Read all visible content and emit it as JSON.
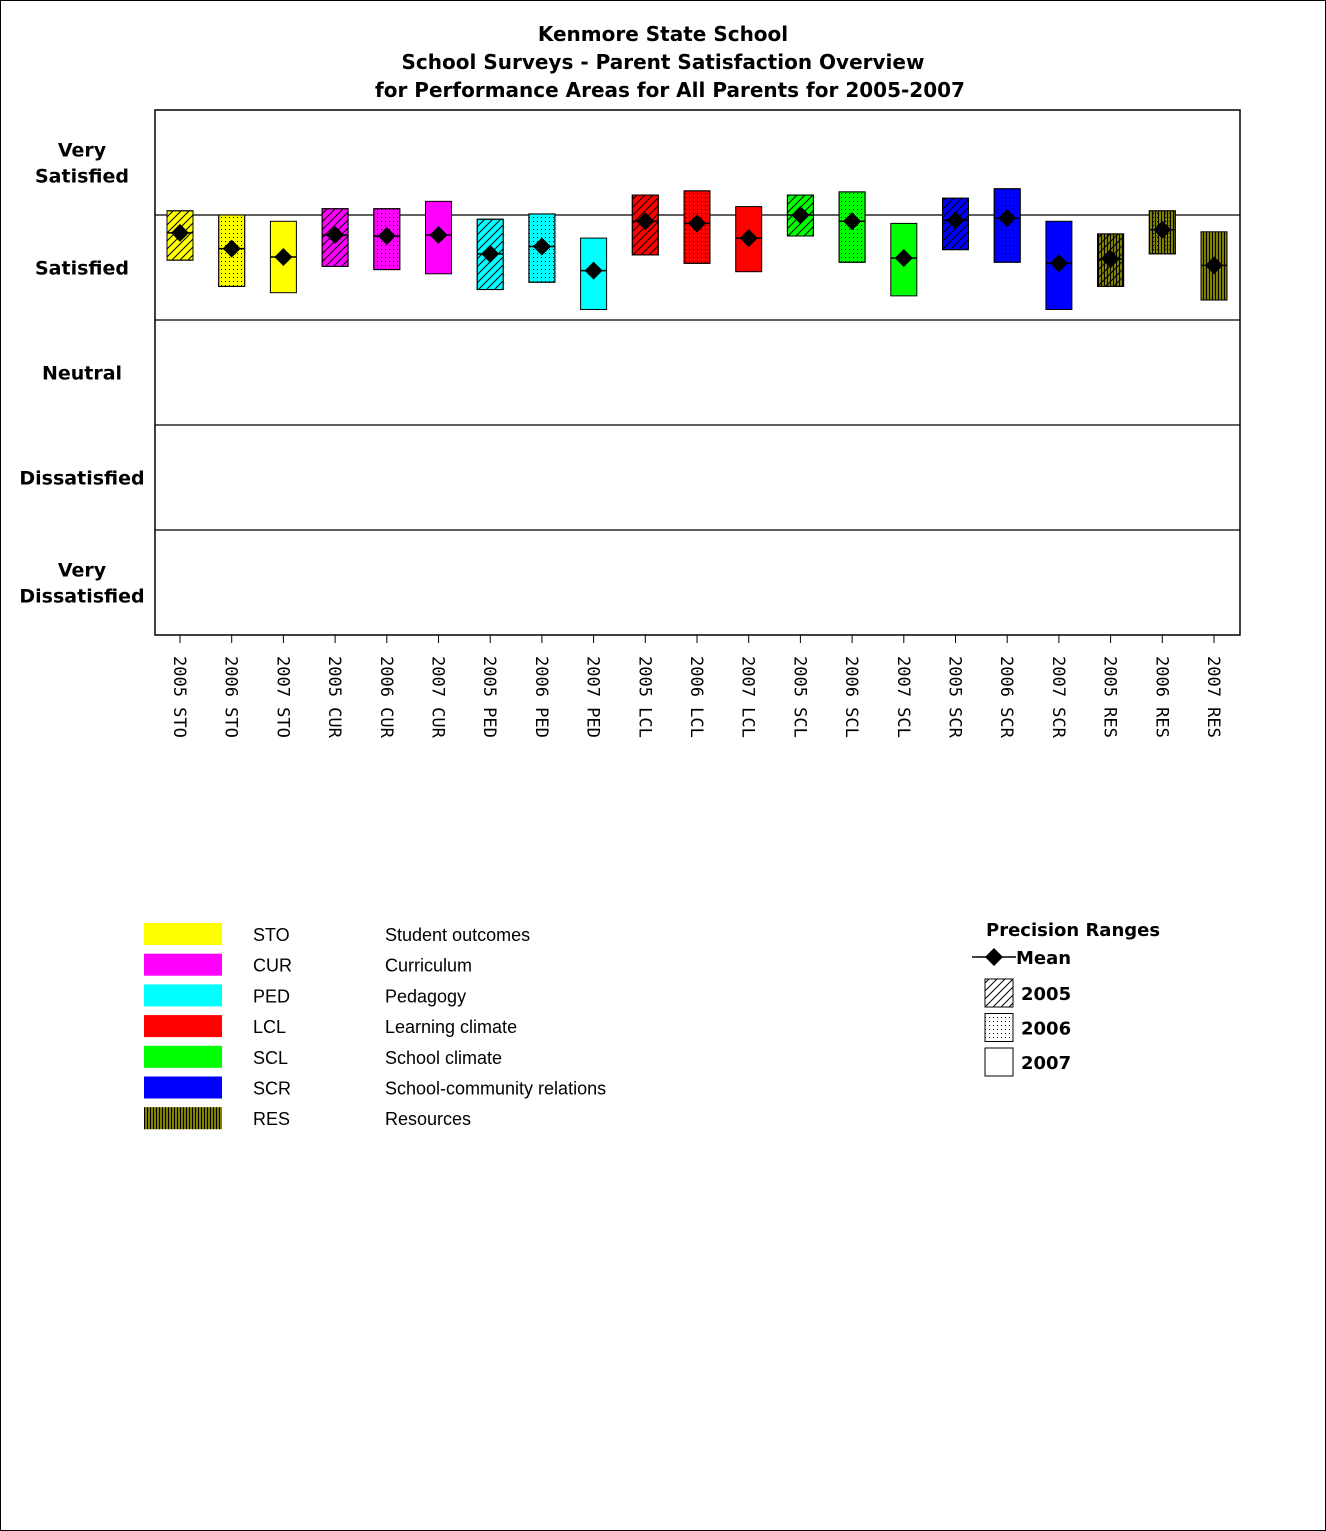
{
  "chart_data": {
    "type": "bar",
    "title": [
      "Kenmore State School",
      "School Surveys - Parent Satisfaction Overview",
      "for Performance Areas for All Parents for 2005-2007"
    ],
    "y_levels": [
      {
        "value": 5,
        "label_lines": [
          "Very",
          "Satisfied"
        ]
      },
      {
        "value": 4,
        "label_lines": [
          "Satisfied"
        ]
      },
      {
        "value": 3,
        "label_lines": [
          "Neutral"
        ]
      },
      {
        "value": 2,
        "label_lines": [
          "Dissatisfied"
        ]
      },
      {
        "value": 1,
        "label_lines": [
          "Very",
          "Dissatisfied"
        ]
      }
    ],
    "ylim": [
      0.5,
      5.5
    ],
    "reference_line": 4.5,
    "categories": [
      "2005 STO",
      "2006 STO",
      "2007 STO",
      "2005 CUR",
      "2006 CUR",
      "2007 CUR",
      "2005 PED",
      "2006 PED",
      "2007 PED",
      "2005 LCL",
      "2006 LCL",
      "2007 LCL",
      "2005 SCL",
      "2006 SCL",
      "2007 SCL",
      "2005 SCR",
      "2006 SCR",
      "2007 SCR",
      "2005 RES",
      "2006 RES",
      "2007 RES"
    ],
    "items": [
      {
        "label": "2005 STO",
        "area": "STO",
        "year": "2005",
        "low": 4.07,
        "high": 4.54,
        "mean": 4.33
      },
      {
        "label": "2006 STO",
        "area": "STO",
        "year": "2006",
        "low": 3.82,
        "high": 4.5,
        "mean": 4.18
      },
      {
        "label": "2007 STO",
        "area": "STO",
        "year": "2007",
        "low": 3.76,
        "high": 4.44,
        "mean": 4.1
      },
      {
        "label": "2005 CUR",
        "area": "CUR",
        "year": "2005",
        "low": 4.01,
        "high": 4.56,
        "mean": 4.31
      },
      {
        "label": "2006 CUR",
        "area": "CUR",
        "year": "2006",
        "low": 3.98,
        "high": 4.56,
        "mean": 4.3
      },
      {
        "label": "2007 CUR",
        "area": "CUR",
        "year": "2007",
        "low": 3.94,
        "high": 4.63,
        "mean": 4.31
      },
      {
        "label": "2005 PED",
        "area": "PED",
        "year": "2005",
        "low": 3.79,
        "high": 4.46,
        "mean": 4.13
      },
      {
        "label": "2006 PED",
        "area": "PED",
        "year": "2006",
        "low": 3.86,
        "high": 4.51,
        "mean": 4.2
      },
      {
        "label": "2007 PED",
        "area": "PED",
        "year": "2007",
        "low": 3.6,
        "high": 4.28,
        "mean": 3.97
      },
      {
        "label": "2005 LCL",
        "area": "LCL",
        "year": "2005",
        "low": 4.12,
        "high": 4.69,
        "mean": 4.44
      },
      {
        "label": "2006 LCL",
        "area": "LCL",
        "year": "2006",
        "low": 4.04,
        "high": 4.73,
        "mean": 4.42
      },
      {
        "label": "2007 LCL",
        "area": "LCL",
        "year": "2007",
        "low": 3.96,
        "high": 4.58,
        "mean": 4.28
      },
      {
        "label": "2005 SCL",
        "area": "SCL",
        "year": "2005",
        "low": 4.3,
        "high": 4.69,
        "mean": 4.5
      },
      {
        "label": "2006 SCL",
        "area": "SCL",
        "year": "2006",
        "low": 4.05,
        "high": 4.72,
        "mean": 4.44
      },
      {
        "label": "2007 SCL",
        "area": "SCL",
        "year": "2007",
        "low": 3.73,
        "high": 4.42,
        "mean": 4.09
      },
      {
        "label": "2005 SCR",
        "area": "SCR",
        "year": "2005",
        "low": 4.17,
        "high": 4.66,
        "mean": 4.45
      },
      {
        "label": "2006 SCR",
        "area": "SCR",
        "year": "2006",
        "low": 4.05,
        "high": 4.75,
        "mean": 4.47
      },
      {
        "label": "2007 SCR",
        "area": "SCR",
        "year": "2007",
        "low": 3.6,
        "high": 4.44,
        "mean": 4.04
      },
      {
        "label": "2005 RES",
        "area": "RES",
        "year": "2005",
        "low": 3.82,
        "high": 4.32,
        "mean": 4.08
      },
      {
        "label": "2006 RES",
        "area": "RES",
        "year": "2006",
        "low": 4.13,
        "high": 4.54,
        "mean": 4.36
      },
      {
        "label": "2007 RES",
        "area": "RES",
        "year": "2007",
        "low": 3.69,
        "high": 4.34,
        "mean": 4.02
      }
    ],
    "areas": [
      {
        "code": "STO",
        "name": "Student outcomes",
        "color": "#ffff00"
      },
      {
        "code": "CUR",
        "name": "Curriculum",
        "color": "#ff00ff"
      },
      {
        "code": "PED",
        "name": "Pedagogy",
        "color": "#00ffff"
      },
      {
        "code": "LCL",
        "name": "Learning climate",
        "color": "#ff0000"
      },
      {
        "code": "SCL",
        "name": "School climate",
        "color": "#00ff00"
      },
      {
        "code": "SCR",
        "name": "School-community relations",
        "color": "#0000ff"
      },
      {
        "code": "RES",
        "name": "Resources",
        "color": "#808000"
      }
    ],
    "precision_legend": {
      "title": "Precision Ranges",
      "mean_label": "Mean",
      "years": [
        {
          "label": "2005",
          "pattern": "diagonal-hatch"
        },
        {
          "label": "2006",
          "pattern": "dots"
        },
        {
          "label": "2007",
          "pattern": "none"
        }
      ]
    },
    "grid": true
  }
}
